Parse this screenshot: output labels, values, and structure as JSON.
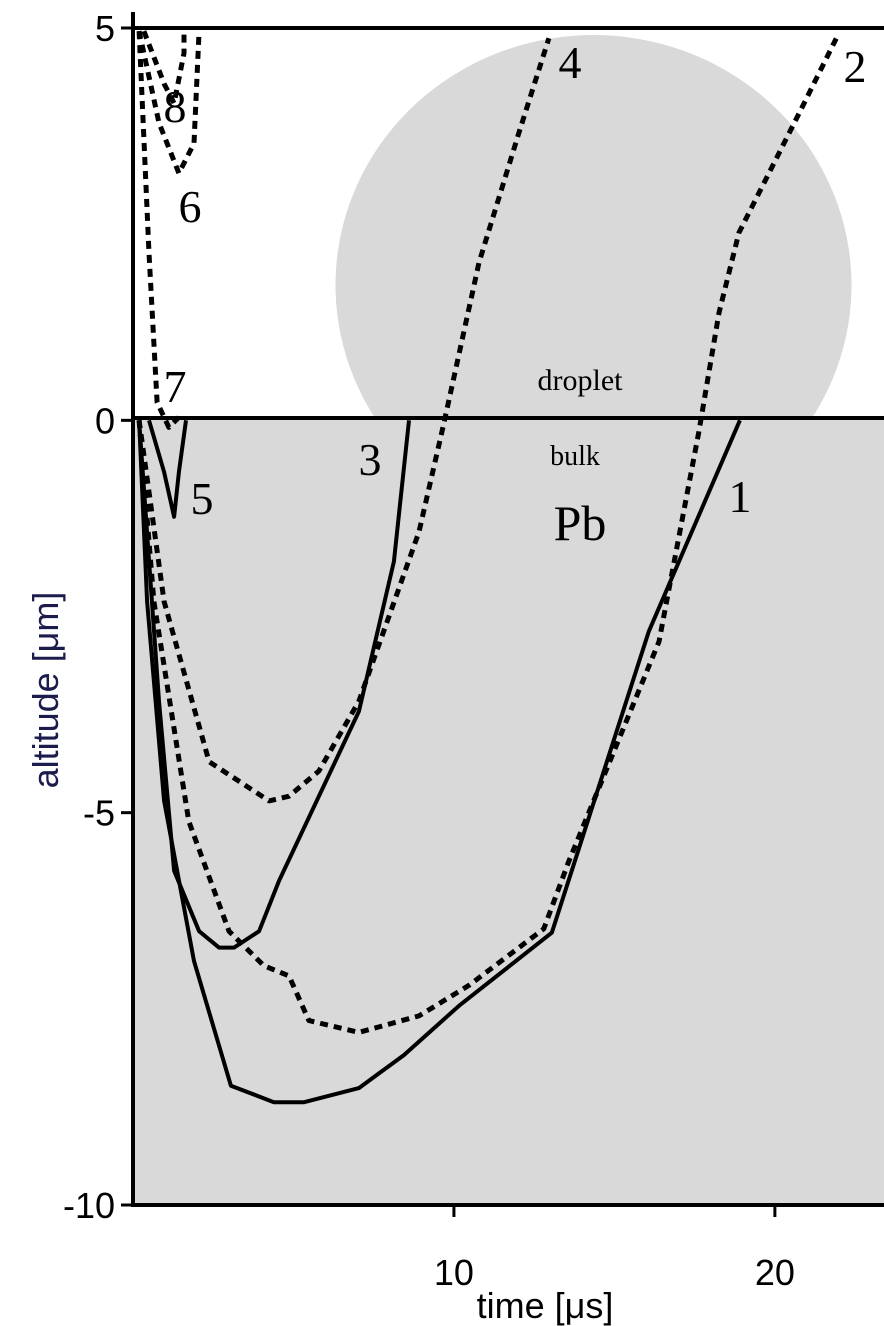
{
  "chart_data": {
    "type": "line",
    "x_label": "time [μs]",
    "y_label": "altitude [μm]",
    "annotations": [
      "droplet",
      "bulk",
      "Pb"
    ],
    "xlim": [
      0,
      23.4
    ],
    "xticks": [
      10,
      20
    ],
    "ylim": [
      -10,
      5
    ],
    "yticks": [
      -10,
      -5,
      0,
      5
    ],
    "series": [
      {
        "name": "1",
        "color": "#000000",
        "line_style": "solid",
        "x": [
          0.19,
          0.44,
          0.97,
          1.9,
          3.05,
          4.39,
          5.33,
          7.04,
          8.44,
          10.16,
          13.05,
          16.07,
          18.91
        ],
        "values": [
          0,
          -2.31,
          -4.85,
          -6.89,
          -8.48,
          -8.69,
          -8.69,
          -8.51,
          -8.09,
          -7.46,
          -6.53,
          -2.69,
          0
        ]
      },
      {
        "name": "2",
        "color": "#000000",
        "line_style": "dashed",
        "x": [
          0.19,
          0.65,
          1.74,
          2.99,
          4.08,
          4.86,
          5.48,
          7.04,
          8.91,
          10.47,
          12.8,
          13.58,
          16.39,
          17.63,
          18.26,
          18.88,
          20.75,
          21.99
        ],
        "values": [
          0,
          -2.31,
          -5.11,
          -6.51,
          -6.95,
          -7.08,
          -7.65,
          -7.8,
          -7.59,
          -7.2,
          -6.48,
          -5.62,
          -2.82,
          -0.15,
          1.37,
          2.39,
          3.91,
          4.93
        ]
      },
      {
        "name": "3",
        "color": "#000000",
        "line_style": "solid",
        "x": [
          0.19,
          0.81,
          1.28,
          2.06,
          2.68,
          3.15,
          3.93,
          4.55,
          7.04,
          8.13,
          8.6
        ],
        "values": [
          0,
          -3.58,
          -5.74,
          -6.51,
          -6.72,
          -6.72,
          -6.51,
          -5.87,
          -3.71,
          -1.8,
          0
        ]
      },
      {
        "name": "4",
        "color": "#000000",
        "line_style": "dashed",
        "x": [
          0.19,
          0.97,
          2.37,
          4.24,
          4.86,
          5.79,
          7.04,
          8.91,
          9.69,
          10.78,
          12.02,
          12.96
        ],
        "values": [
          0,
          -2.31,
          -4.35,
          -4.85,
          -4.79,
          -4.47,
          -3.58,
          -1.42,
          -0.03,
          2.01,
          3.66,
          4.87
        ]
      },
      {
        "name": "5",
        "color": "#000000",
        "line_style": "solid",
        "x": [
          0.5,
          0.97,
          1.28,
          1.43,
          1.65
        ],
        "values": [
          0,
          -0.66,
          -1.23,
          -0.66,
          0
        ]
      },
      {
        "name": "6",
        "color": "#000000",
        "line_style": "dashed",
        "x": [
          0.19,
          0.81,
          1.43,
          1.9,
          2.06
        ],
        "values": [
          4.96,
          3.79,
          3.15,
          3.53,
          4.96
        ]
      },
      {
        "name": "7",
        "color": "#000000",
        "line_style": "dashed",
        "x": [
          0.19,
          0.5,
          0.75,
          1.12,
          1.43
        ],
        "values": [
          4.96,
          2.13,
          0.23,
          -0.09,
          0.04
        ]
      },
      {
        "name": "8",
        "color": "#000000",
        "line_style": "dashed",
        "x": [
          0.34,
          0.97,
          1.28,
          1.59,
          1.59
        ],
        "values": [
          4.96,
          4.29,
          4.04,
          4.68,
          4.96
        ]
      }
    ]
  }
}
